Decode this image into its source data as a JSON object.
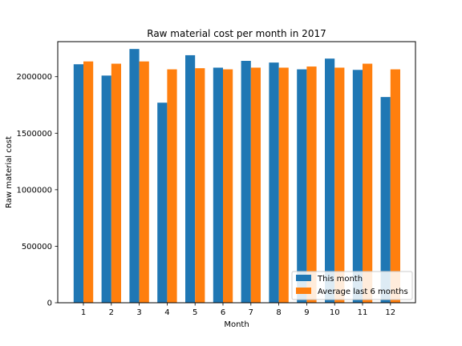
{
  "chart_data": {
    "type": "bar",
    "title": "Raw material cost per month in 2017",
    "xlabel": "Month",
    "ylabel": "Raw material cost",
    "categories": [
      "1",
      "2",
      "3",
      "4",
      "5",
      "6",
      "7",
      "8",
      "9",
      "10",
      "11",
      "12"
    ],
    "ylim": [
      0,
      2310000
    ],
    "yticks": [
      0,
      500000,
      1000000,
      1500000,
      2000000
    ],
    "ytick_labels": [
      "0",
      "500000",
      "1000000",
      "1500000",
      "2000000"
    ],
    "series": [
      {
        "name": "This month",
        "color": "#1f77b4",
        "values": [
          2110000,
          2010000,
          2245000,
          1770000,
          2190000,
          2080000,
          2140000,
          2125000,
          2065000,
          2160000,
          2060000,
          1820000
        ]
      },
      {
        "name": "Average last 6 months",
        "color": "#ff7f0e",
        "values": [
          2135000,
          2115000,
          2135000,
          2065000,
          2075000,
          2065000,
          2080000,
          2080000,
          2090000,
          2080000,
          2115000,
          2065000
        ]
      }
    ],
    "legend": "lower-right",
    "grid": false
  }
}
